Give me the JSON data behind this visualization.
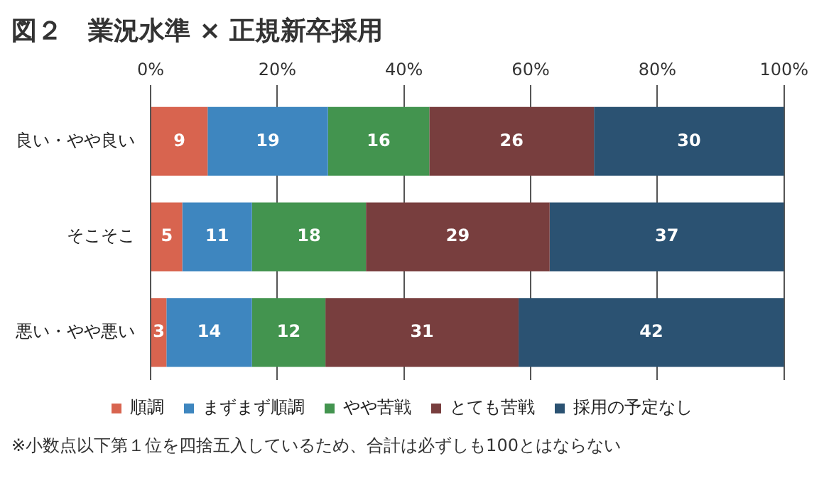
{
  "chart_data": {
    "type": "bar",
    "orientation": "horizontal",
    "stacked": true,
    "title": "図２　業況水準 × 正規新卒採用",
    "categories": [
      "良い・やや良い",
      "そこそこ",
      "悪い・やや悪い"
    ],
    "series": [
      {
        "name": "順調",
        "color": "#d8644f",
        "values": [
          9,
          5,
          2.5
        ],
        "value_labels": [
          "9",
          "5",
          "3"
        ]
      },
      {
        "name": "まずまず順調",
        "color": "#3e86bf",
        "values": [
          19,
          11,
          13.5
        ],
        "value_labels": [
          "19",
          "11",
          "14"
        ]
      },
      {
        "name": "やや苦戦",
        "color": "#43944f",
        "values": [
          16,
          18,
          11.6
        ],
        "value_labels": [
          "16",
          "18",
          "12"
        ]
      },
      {
        "name": "とても苦戦",
        "color": "#783e3e",
        "values": [
          26,
          29,
          30.5
        ],
        "value_labels": [
          "26",
          "29",
          "31"
        ]
      },
      {
        "name": "採用の予定なし",
        "color": "#2b5272",
        "values": [
          30,
          37,
          41.9
        ],
        "value_labels": [
          "30",
          "37",
          "42"
        ]
      }
    ],
    "xlim": [
      0,
      100
    ],
    "xticks": [
      {
        "value": 0,
        "label": "0%"
      },
      {
        "value": 20,
        "label": "20%"
      },
      {
        "value": 40,
        "label": "40%"
      },
      {
        "value": 60,
        "label": "60%"
      },
      {
        "value": 80,
        "label": "80%"
      },
      {
        "value": 100,
        "label": "100%"
      }
    ],
    "grid": "x",
    "legend": "bottom",
    "annotations": [
      "※小数点以下第１位を四捨五入しているため、合計は必ずしも100とはならない"
    ]
  }
}
